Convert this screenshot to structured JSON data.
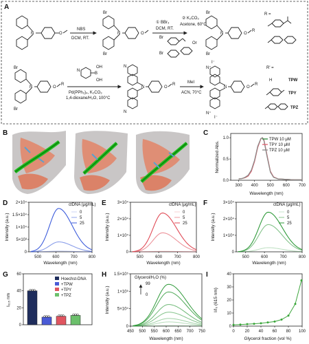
{
  "panels": {
    "A": {
      "label": "A",
      "reagents": {
        "nbs": "NBS",
        "dcm_rt_1": "DCM, RT.",
        "bbr3": "① BBr₃",
        "dcm_rt_2": "DCM, RT.",
        "k2co3_step": "② K₂CO₃",
        "acetone": "Acetone, 60°C",
        "or_text": "Or",
        "boronic_oh": "OH",
        "boronic_b": "B",
        "pd": "Pd(PPh₃)₄, K₂CO₃",
        "dioxane": "1,4-dioxane/H₂O, 100°C",
        "mei": "MeI",
        "acn": "ACN, 70°C"
      },
      "atoms": {
        "n": "N",
        "br": "Br",
        "o": "O",
        "r": "R",
        "n_plus": "N⁺",
        "i_minus": "I⁻"
      },
      "r_def": "R =",
      "rprime_def": "R' =",
      "rprime_h": "H",
      "compounds": [
        "TPW",
        "TPY",
        "TPZ"
      ]
    },
    "B": {
      "label": "B"
    },
    "C": {
      "label": "C",
      "legend": [
        "TPW 10 μM",
        "TPY 10 μM",
        "TPZ 10 μM"
      ],
      "colors": [
        "#2e8b3e",
        "#e06070",
        "#8a8a8a"
      ],
      "xlabel": "Wavelength (nm)",
      "ylabel": "Normalized Abs.",
      "xticks": [
        "300",
        "400",
        "500",
        "600",
        "700"
      ],
      "yticks": [
        "0.0",
        "0.5",
        "1.0"
      ]
    },
    "D": {
      "label": "D",
      "title": "ctDNA (μg/mL)",
      "legend": [
        "0",
        "5",
        "25"
      ],
      "color": "#3b5bdb"
    },
    "E": {
      "label": "E",
      "title": "ctDNA (μg/mL)",
      "legend": [
        "0",
        "5",
        "25"
      ],
      "color": "#e04a55"
    },
    "F": {
      "label": "F",
      "title": "ctDNA (μg/mL)",
      "legend": [
        "0",
        "5",
        "25"
      ],
      "color": "#2f9a3a"
    },
    "DEF_axes": {
      "xlabel": "Wavelength (nm)",
      "ylabel": "Intensity (a.u.)",
      "xticks": [
        "500",
        "600",
        "700",
        "800"
      ],
      "yticks_D": [
        "0",
        "5×10³",
        "1×10⁴",
        "1.5×10⁴",
        "2×10⁴"
      ],
      "yticks_E": [
        "0",
        "1×10⁴",
        "2×10⁴",
        "3×10⁴"
      ],
      "yticks_F": [
        "0",
        "1×10⁴",
        "2×10⁴",
        "3×10⁴"
      ]
    },
    "G": {
      "label": "G",
      "ylabel": "I₆₁₅ nm",
      "yticks": [
        "0",
        "20",
        "40",
        "60"
      ],
      "legend": [
        "Hoechst-DNA",
        "+TPW",
        "+TPY",
        "+TPZ"
      ],
      "colors": [
        "#1f2d5c",
        "#4a5bd6",
        "#e05560",
        "#6cc06c"
      ]
    },
    "H": {
      "label": "H",
      "title": "Glycerol/H₂O (%)",
      "legend_top": "99",
      "legend_bottom": "0",
      "xlabel": "Wavelength (nm)",
      "ylabel": "Intensity (a.u.)",
      "xticks": [
        "450",
        "500",
        "550",
        "600",
        "650",
        "700",
        "750"
      ],
      "yticks": [
        "0",
        "5×10⁴",
        "1×10⁵",
        "1.5×10⁵"
      ]
    },
    "I": {
      "label": "I",
      "xlabel": "Glycerol fraction (vol %)",
      "ylabel": "I/I₀ (615 nm)",
      "xticks": [
        "0",
        "20",
        "40",
        "60",
        "80",
        "100"
      ],
      "yticks": [
        "0",
        "10",
        "20",
        "30",
        "40"
      ],
      "color": "#3aa53a"
    }
  },
  "chart_data": [
    {
      "panel": "C",
      "type": "line",
      "xlabel": "Wavelength (nm)",
      "ylabel": "Normalized Abs.",
      "xlim": [
        250,
        700
      ],
      "ylim": [
        0,
        1.1
      ],
      "series": [
        {
          "name": "TPW 10 μM",
          "x": [
            300,
            320,
            340,
            360,
            380,
            400,
            420,
            440,
            450,
            460,
            480,
            500,
            520,
            550,
            600,
            650,
            700
          ],
          "values": [
            0.03,
            0.04,
            0.06,
            0.1,
            0.22,
            0.45,
            0.78,
            0.98,
            1.0,
            0.93,
            0.55,
            0.2,
            0.07,
            0.03,
            0.02,
            0.01,
            0.01
          ]
        },
        {
          "name": "TPY 10 μM",
          "x": [
            300,
            320,
            340,
            360,
            380,
            400,
            420,
            440,
            450,
            460,
            480,
            500,
            520,
            550,
            600,
            650,
            700
          ],
          "values": [
            0.03,
            0.04,
            0.06,
            0.1,
            0.21,
            0.44,
            0.77,
            0.97,
            1.0,
            0.94,
            0.57,
            0.21,
            0.08,
            0.03,
            0.02,
            0.01,
            0.01
          ]
        },
        {
          "name": "TPZ 10 μM",
          "x": [
            300,
            320,
            340,
            360,
            380,
            400,
            420,
            440,
            450,
            460,
            480,
            500,
            520,
            550,
            600,
            650,
            700
          ],
          "values": [
            0.03,
            0.04,
            0.07,
            0.12,
            0.24,
            0.47,
            0.8,
            0.98,
            1.0,
            0.92,
            0.54,
            0.19,
            0.07,
            0.03,
            0.02,
            0.01,
            0.01
          ]
        }
      ]
    },
    {
      "panel": "D",
      "type": "line",
      "title": "ctDNA (μg/mL)",
      "xlabel": "Wavelength (nm)",
      "ylabel": "Intensity (a.u.)",
      "xlim": [
        450,
        800
      ],
      "ylim": [
        0,
        20000
      ],
      "series": [
        {
          "name": "0",
          "peak": 615,
          "values_at_peak": 300
        },
        {
          "name": "5",
          "peak": 615,
          "values_at_peak": 4000
        },
        {
          "name": "25",
          "peak": 615,
          "values_at_peak": 17500
        }
      ]
    },
    {
      "panel": "E",
      "type": "line",
      "title": "ctDNA (μg/mL)",
      "xlabel": "Wavelength (nm)",
      "ylabel": "Intensity (a.u.)",
      "xlim": [
        450,
        800
      ],
      "ylim": [
        0,
        30000
      ],
      "series": [
        {
          "name": "0",
          "peak": 620,
          "values_at_peak": 300
        },
        {
          "name": "5",
          "peak": 620,
          "values_at_peak": 11500
        },
        {
          "name": "25",
          "peak": 620,
          "values_at_peak": 23500
        }
      ]
    },
    {
      "panel": "F",
      "type": "line",
      "title": "ctDNA (μg/mL)",
      "xlabel": "Wavelength (nm)",
      "ylabel": "Intensity (a.u.)",
      "xlim": [
        450,
        800
      ],
      "ylim": [
        0,
        30000
      ],
      "series": [
        {
          "name": "0",
          "peak": 620,
          "values_at_peak": 2500
        },
        {
          "name": "5",
          "peak": 620,
          "values_at_peak": 16500
        },
        {
          "name": "25",
          "peak": 620,
          "values_at_peak": 24000
        }
      ]
    },
    {
      "panel": "G",
      "type": "bar",
      "ylabel": "I₆₁₅ nm",
      "categories": [
        "Hoechst-DNA",
        "+TPW",
        "+TPY",
        "+TPZ"
      ],
      "values": [
        40,
        9,
        10,
        11
      ],
      "ylim": [
        0,
        60
      ]
    },
    {
      "panel": "H",
      "type": "line",
      "title": "Glycerol/H₂O (%)",
      "xlabel": "Wavelength (nm)",
      "ylabel": "Intensity (a.u.)",
      "xlim": [
        450,
        750
      ],
      "ylim": [
        0,
        150000
      ],
      "series": [
        {
          "name": "",
          "peak": 610,
          "values_at_peak": 2000
        },
        {
          "name": "",
          "peak": 610,
          "values_at_peak": 12000
        },
        {
          "name": "",
          "peak": 610,
          "values_at_peak": 22000
        },
        {
          "name": "",
          "peak": 610,
          "values_at_peak": 40000
        },
        {
          "name": "",
          "peak": 610,
          "values_at_peak": 62000
        },
        {
          "name": "",
          "peak": 610,
          "values_at_peak": 98000
        },
        {
          "name": "",
          "peak": 610,
          "values_at_peak": 120000
        }
      ]
    },
    {
      "panel": "I",
      "type": "line",
      "xlabel": "Glycerol fraction (vol %)",
      "ylabel": "I/I₀ (615 nm)",
      "xlim": [
        0,
        100
      ],
      "ylim": [
        0,
        40
      ],
      "x": [
        0,
        10,
        20,
        30,
        40,
        50,
        60,
        70,
        80,
        90,
        99
      ],
      "values": [
        1,
        1.2,
        1.5,
        1.8,
        2.2,
        2.8,
        3.5,
        5,
        8,
        17,
        35
      ]
    }
  ]
}
